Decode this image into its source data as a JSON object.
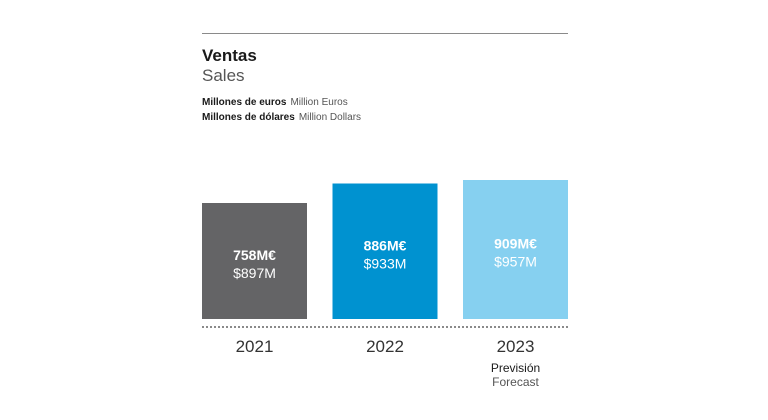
{
  "header": {
    "title": "Ventas",
    "subtitle": "Sales",
    "units": [
      {
        "es": "Millones de euros",
        "en": "Million Euros"
      },
      {
        "es": "Millones de dólares",
        "en": "Million Dollars"
      }
    ]
  },
  "chart_data": {
    "type": "bar",
    "categories": [
      "2021",
      "2022",
      "2023"
    ],
    "series": [
      {
        "name": "Millones de euros",
        "values": [
          758,
          886,
          909
        ]
      },
      {
        "name": "Millones de dólares",
        "values": [
          897,
          933,
          957
        ]
      }
    ],
    "bar_labels": [
      {
        "primary": "758M€",
        "secondary": "$897M"
      },
      {
        "primary": "886M€",
        "secondary": "$933M"
      },
      {
        "primary": "909M€",
        "secondary": "$957M"
      }
    ],
    "category_notes": [
      null,
      null,
      {
        "es": "Previsión",
        "en": "Forecast"
      }
    ],
    "bar_colors": [
      "#646466",
      "#0092D0",
      "#86D0F0"
    ],
    "label_colors": [
      {
        "primary": "#ffffff",
        "secondary": "#ffffff"
      },
      {
        "primary": "#ffffff",
        "secondary": "#ffffff"
      },
      {
        "primary": "#ffffff",
        "secondary": "#ffffff"
      }
    ],
    "ylim": [
      0,
      1100
    ],
    "grid": false,
    "legend": "none"
  }
}
